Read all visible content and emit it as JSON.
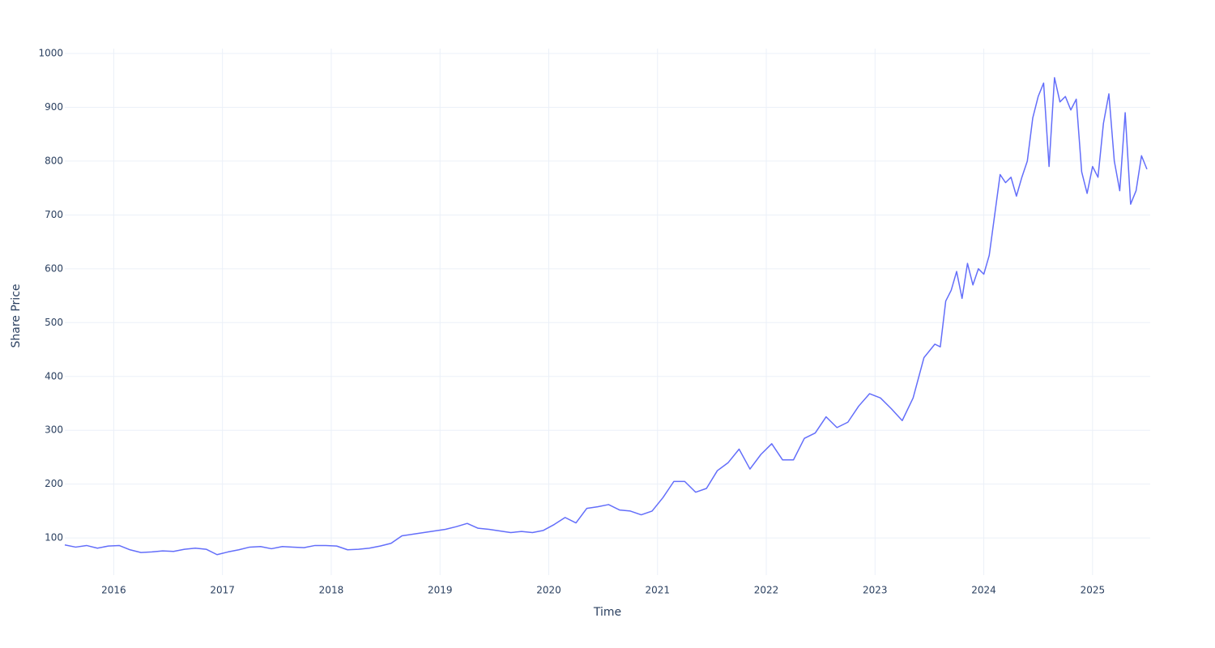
{
  "chart_data": {
    "type": "line",
    "x_label": "Time",
    "y_label": "Share Price",
    "x": [
      2015.55,
      2015.65,
      2015.75,
      2015.85,
      2015.95,
      2016.05,
      2016.15,
      2016.25,
      2016.35,
      2016.45,
      2016.55,
      2016.65,
      2016.75,
      2016.85,
      2016.95,
      2017.05,
      2017.15,
      2017.25,
      2017.35,
      2017.45,
      2017.55,
      2017.65,
      2017.75,
      2017.85,
      2017.95,
      2018.05,
      2018.15,
      2018.25,
      2018.35,
      2018.45,
      2018.55,
      2018.65,
      2018.75,
      2018.85,
      2018.95,
      2019.05,
      2019.15,
      2019.25,
      2019.35,
      2019.45,
      2019.55,
      2019.65,
      2019.75,
      2019.85,
      2019.95,
      2020.05,
      2020.15,
      2020.25,
      2020.35,
      2020.45,
      2020.55,
      2020.65,
      2020.75,
      2020.85,
      2020.95,
      2021.05,
      2021.15,
      2021.25,
      2021.35,
      2021.45,
      2021.55,
      2021.65,
      2021.75,
      2021.85,
      2021.95,
      2022.05,
      2022.15,
      2022.25,
      2022.35,
      2022.45,
      2022.55,
      2022.65,
      2022.75,
      2022.85,
      2022.95,
      2023.05,
      2023.15,
      2023.25,
      2023.35,
      2023.45,
      2023.55,
      2023.6,
      2023.65,
      2023.7,
      2023.75,
      2023.8,
      2023.85,
      2023.9,
      2023.95,
      2024.0,
      2024.05,
      2024.1,
      2024.15,
      2024.2,
      2024.25,
      2024.3,
      2024.35,
      2024.4,
      2024.45,
      2024.5,
      2024.55,
      2024.6,
      2024.65,
      2024.7,
      2024.75,
      2024.8,
      2024.85,
      2024.9,
      2024.95,
      2025.0,
      2025.05,
      2025.1,
      2025.15,
      2025.2,
      2025.25,
      2025.3,
      2025.35,
      2025.4,
      2025.45,
      2025.5
    ],
    "series": [
      {
        "color": "#636efa",
        "values": [
          87,
          83,
          86,
          81,
          85,
          86,
          78,
          73,
          74,
          76,
          75,
          79,
          81,
          79,
          69,
          74,
          78,
          83,
          84,
          80,
          84,
          83,
          82,
          86,
          86,
          85,
          78,
          79,
          81,
          85,
          90,
          104,
          107,
          110,
          113,
          116,
          121,
          127,
          118,
          116,
          113,
          110,
          112,
          110,
          114,
          125,
          138,
          128,
          155,
          158,
          162,
          152,
          150,
          143,
          150,
          175,
          205,
          205,
          185,
          192,
          225,
          240,
          265,
          228,
          255,
          275,
          245,
          245,
          285,
          295,
          325,
          305,
          315,
          345,
          368,
          360,
          340,
          318,
          360,
          435,
          460,
          455,
          540,
          560,
          595,
          545,
          610,
          570,
          600,
          590,
          625,
          700,
          775,
          760,
          770,
          735,
          770,
          800,
          880,
          920,
          945,
          790,
          955,
          910,
          920,
          895,
          915,
          780,
          740,
          790,
          770,
          870,
          925,
          800,
          745,
          890,
          720,
          745,
          810,
          785
        ]
      }
    ],
    "xlim": [
      2015.55,
      2025.53
    ],
    "xticks": [
      2016,
      2017,
      2018,
      2019,
      2020,
      2021,
      2022,
      2023,
      2024,
      2025
    ],
    "ylim": [
      31,
      1009
    ],
    "yticks": [
      100,
      200,
      300,
      400,
      500,
      600,
      700,
      800,
      900,
      1000
    ],
    "grid": true
  }
}
